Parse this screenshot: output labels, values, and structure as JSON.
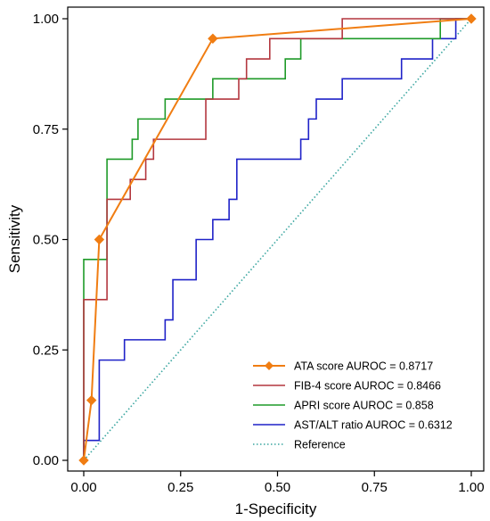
{
  "chart_data": {
    "type": "line",
    "title": "",
    "xlabel": "1-Specificity",
    "ylabel": "Sensitivity",
    "xlim": [
      0,
      1
    ],
    "ylim": [
      0,
      1
    ],
    "x_ticks": [
      "0.00",
      "0.25",
      "0.50",
      "0.75",
      "1.00"
    ],
    "y_ticks": [
      "0.00",
      "0.25",
      "0.50",
      "0.75",
      "1.00"
    ],
    "grid": false,
    "legend_position": "bottom-right",
    "series": [
      {
        "name": "ATA score AUROC = 0.8717",
        "color": "#f07d12",
        "marker": "diamond",
        "points": [
          [
            0,
            0
          ],
          [
            0.02,
            0.136
          ],
          [
            0.04,
            0.5
          ],
          [
            0.333,
            0.955
          ],
          [
            1,
            1
          ]
        ]
      },
      {
        "name": "FIB-4 score AUROC = 0.8466",
        "color": "#b3373f",
        "marker": "none",
        "points": [
          [
            0,
            0
          ],
          [
            0,
            0.364
          ],
          [
            0.06,
            0.364
          ],
          [
            0.06,
            0.591
          ],
          [
            0.12,
            0.591
          ],
          [
            0.12,
            0.636
          ],
          [
            0.16,
            0.636
          ],
          [
            0.16,
            0.682
          ],
          [
            0.18,
            0.682
          ],
          [
            0.18,
            0.727
          ],
          [
            0.315,
            0.727
          ],
          [
            0.315,
            0.818
          ],
          [
            0.4,
            0.818
          ],
          [
            0.4,
            0.864
          ],
          [
            0.42,
            0.864
          ],
          [
            0.42,
            0.909
          ],
          [
            0.48,
            0.909
          ],
          [
            0.48,
            0.955
          ],
          [
            0.667,
            0.955
          ],
          [
            0.667,
            1
          ],
          [
            1,
            1
          ]
        ]
      },
      {
        "name": "APRI score AUROC = 0.858",
        "color": "#1e9a28",
        "marker": "none",
        "points": [
          [
            0,
            0
          ],
          [
            0,
            0.455
          ],
          [
            0.06,
            0.455
          ],
          [
            0.06,
            0.682
          ],
          [
            0.125,
            0.682
          ],
          [
            0.125,
            0.727
          ],
          [
            0.14,
            0.727
          ],
          [
            0.14,
            0.773
          ],
          [
            0.21,
            0.773
          ],
          [
            0.21,
            0.818
          ],
          [
            0.333,
            0.818
          ],
          [
            0.333,
            0.864
          ],
          [
            0.52,
            0.864
          ],
          [
            0.52,
            0.909
          ],
          [
            0.56,
            0.909
          ],
          [
            0.56,
            0.955
          ],
          [
            0.92,
            0.955
          ],
          [
            0.92,
            1
          ],
          [
            1,
            1
          ]
        ]
      },
      {
        "name": "AST/ALT ratio AUROC = 0.6312",
        "color": "#1f22c8",
        "marker": "none",
        "points": [
          [
            0,
            0
          ],
          [
            0,
            0.045
          ],
          [
            0.04,
            0.045
          ],
          [
            0.04,
            0.227
          ],
          [
            0.105,
            0.227
          ],
          [
            0.105,
            0.273
          ],
          [
            0.21,
            0.273
          ],
          [
            0.21,
            0.318
          ],
          [
            0.23,
            0.318
          ],
          [
            0.23,
            0.409
          ],
          [
            0.29,
            0.409
          ],
          [
            0.29,
            0.5
          ],
          [
            0.333,
            0.5
          ],
          [
            0.333,
            0.545
          ],
          [
            0.375,
            0.545
          ],
          [
            0.375,
            0.591
          ],
          [
            0.395,
            0.591
          ],
          [
            0.395,
            0.682
          ],
          [
            0.56,
            0.682
          ],
          [
            0.56,
            0.727
          ],
          [
            0.58,
            0.727
          ],
          [
            0.58,
            0.773
          ],
          [
            0.6,
            0.773
          ],
          [
            0.6,
            0.818
          ],
          [
            0.667,
            0.818
          ],
          [
            0.667,
            0.864
          ],
          [
            0.82,
            0.864
          ],
          [
            0.82,
            0.909
          ],
          [
            0.9,
            0.909
          ],
          [
            0.9,
            0.955
          ],
          [
            0.96,
            0.955
          ],
          [
            0.96,
            1
          ],
          [
            1,
            1
          ]
        ]
      },
      {
        "name": "Reference",
        "color": "#3aa6a0",
        "marker": "none",
        "dashed": true,
        "points": [
          [
            0,
            0
          ],
          [
            1,
            1
          ]
        ]
      }
    ]
  }
}
